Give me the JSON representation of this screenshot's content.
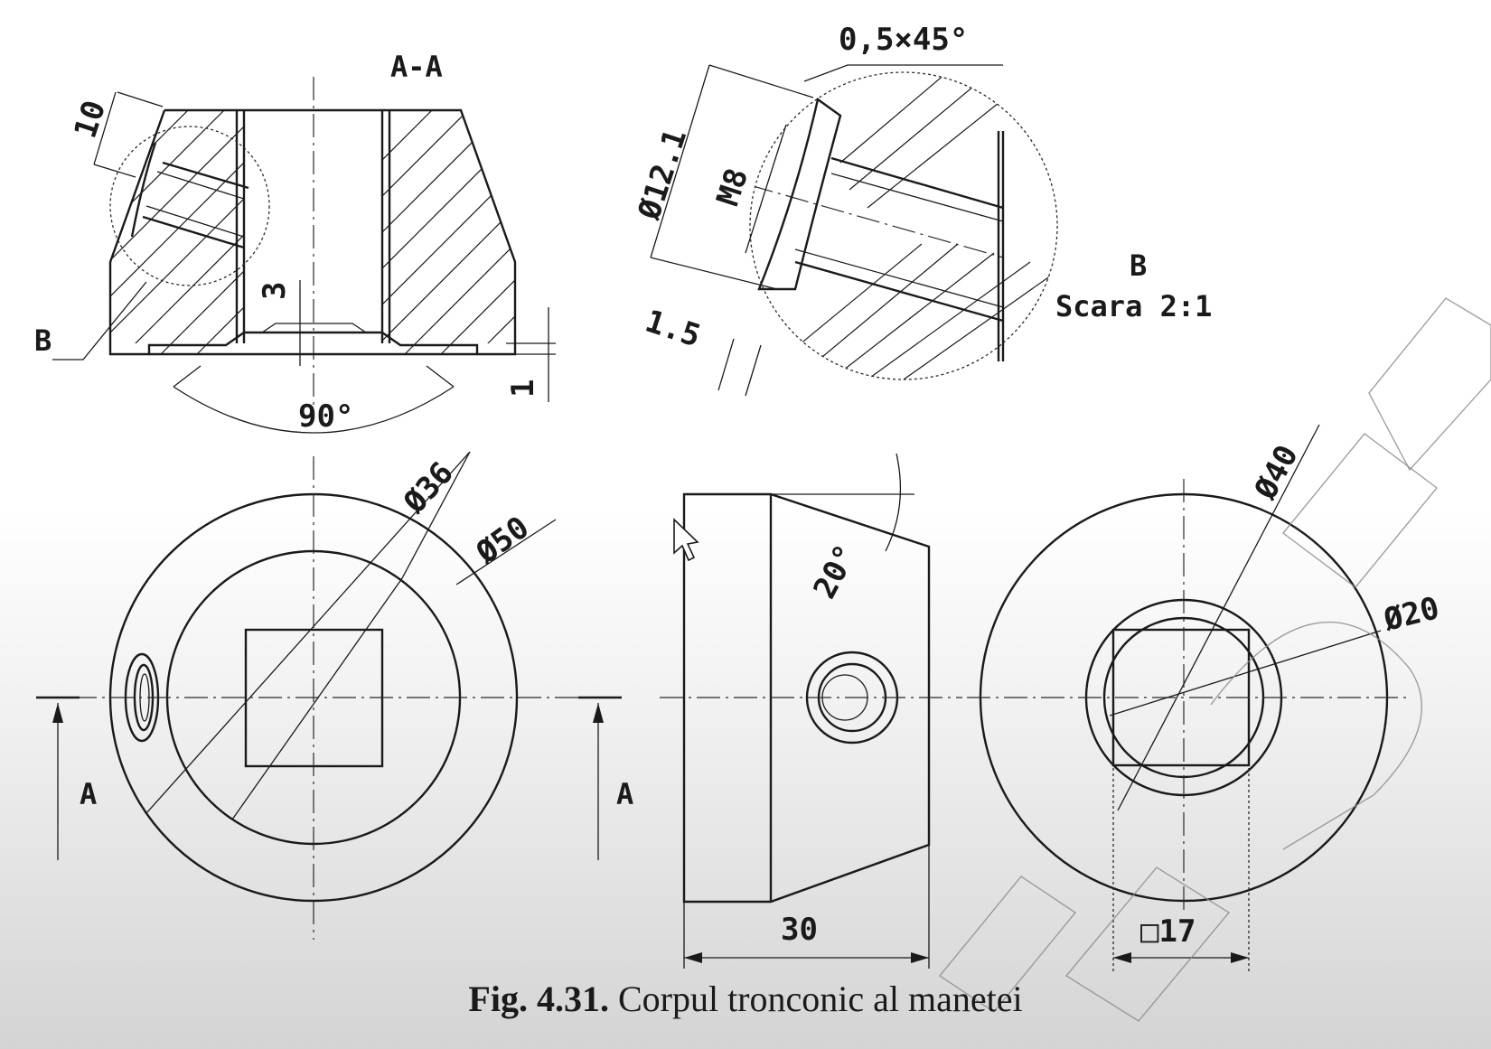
{
  "caption": {
    "number": "Fig. 4.31.",
    "title": "Corpul tronconic al manetei"
  },
  "section": {
    "name": "A-A",
    "dim_10": "10",
    "dim_3": "3",
    "dim_1": "1",
    "angle": "90°",
    "detail_ref": "B"
  },
  "detail": {
    "label": "B",
    "scale": "Scara 2:1",
    "chamfer": "0,5×45°",
    "dia": "Ø12.1",
    "thread": "M8",
    "depth": "1.5"
  },
  "front_view": {
    "dia_inner": "Ø36",
    "dia_outer": "Ø50",
    "cut_left": "A",
    "cut_right": "A"
  },
  "side_view": {
    "angle": "20°",
    "length": "30"
  },
  "back_view": {
    "dia_outer": "Ø40",
    "dia_inner": "Ø20",
    "square": "□17"
  },
  "colors": {
    "line": "#1a1a1a",
    "watermark": "#8a8a8a"
  }
}
